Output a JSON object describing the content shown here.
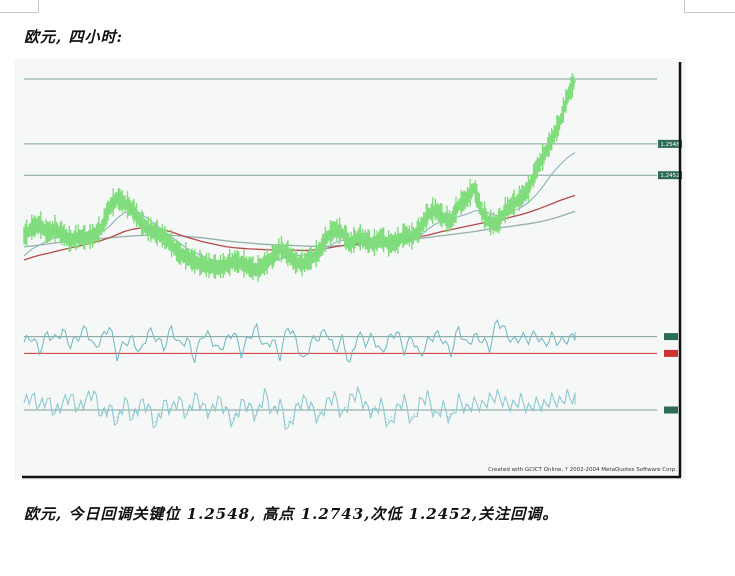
{
  "page": {
    "heading": "欧元, 四小时:",
    "comment": "欧元, 今日回调关键位 1.2548, 高点 1.2743,次低 1.2452,关注回调。"
  },
  "chart_data": {
    "type": "line",
    "timeframe": "4H",
    "credit": "Created with GCICT Online, ? 2002-2004 MetaQuotes Software Corp.",
    "colors": {
      "price": "#7fdc7a",
      "ma_fast": "#8ab4bc",
      "ma_mid": "#b44a4a",
      "ma_slow": "#93b0a8",
      "level_line": "#7ea39b",
      "level_tag": "#2f6b5a",
      "osc1": "#6cb8c0",
      "osc2": "#8ac8d0",
      "zero_line": "#cc3333",
      "frame": "#111111"
    },
    "price_ylim": [
      1.21,
      1.275
    ],
    "price_levels": [
      {
        "value": 1.2548,
        "label": "1.2548"
      },
      {
        "value": 1.2452,
        "label": "1.2452"
      }
    ],
    "price_series": {
      "name": "",
      "values": [
        1.2265,
        1.229,
        1.23,
        1.2275,
        1.2285,
        1.227,
        1.225,
        1.2262,
        1.2258,
        1.2265,
        1.229,
        1.2352,
        1.238,
        1.2365,
        1.2345,
        1.231,
        1.2285,
        1.2275,
        1.2262,
        1.224,
        1.221,
        1.22,
        1.2185,
        1.2178,
        1.2172,
        1.2168,
        1.2175,
        1.2188,
        1.2182,
        1.217,
        1.216,
        1.2178,
        1.22,
        1.2225,
        1.221,
        1.2185,
        1.218,
        1.2196,
        1.2215,
        1.226,
        1.2285,
        1.2275,
        1.224,
        1.2262,
        1.2252,
        1.224,
        1.2258,
        1.224,
        1.2246,
        1.2268,
        1.2262,
        1.2285,
        1.233,
        1.2345,
        1.2322,
        1.2308,
        1.236,
        1.2378,
        1.2412,
        1.2338,
        1.2305,
        1.2302,
        1.2342,
        1.2362,
        1.2382,
        1.2408,
        1.2468,
        1.2512,
        1.256,
        1.261,
        1.269,
        1.2743
      ]
    },
    "ma_fast": [
      1.2205,
      1.2225,
      1.2238,
      1.225,
      1.2262,
      1.2268,
      1.227,
      1.2268,
      1.227,
      1.2272,
      1.2278,
      1.2295,
      1.232,
      1.2338,
      1.2342,
      1.2335,
      1.2318,
      1.23,
      1.2282,
      1.2262,
      1.2245,
      1.2228,
      1.2215,
      1.2205,
      1.2195,
      1.2188,
      1.2183,
      1.2181,
      1.2182,
      1.2182,
      1.218,
      1.2182,
      1.2188,
      1.2196,
      1.2202,
      1.2205,
      1.2208,
      1.221,
      1.2215,
      1.2228,
      1.2245,
      1.2252,
      1.225,
      1.2248,
      1.2246,
      1.2245,
      1.2245,
      1.2243,
      1.2244,
      1.225,
      1.2256,
      1.2265,
      1.2285,
      1.2302,
      1.2312,
      1.2318,
      1.2325,
      1.2332,
      1.2342,
      1.2345,
      1.2335,
      1.2328,
      1.2332,
      1.2342,
      1.2352,
      1.2368,
      1.2392,
      1.2422,
      1.2455,
      1.2482,
      1.2505,
      1.2522
    ],
    "ma_mid": [
      1.2192,
      1.22,
      1.2207,
      1.2212,
      1.2218,
      1.2224,
      1.2229,
      1.2234,
      1.224,
      1.2246,
      1.2252,
      1.226,
      1.227,
      1.228,
      1.2286,
      1.229,
      1.229,
      1.2288,
      1.2284,
      1.2278,
      1.227,
      1.2262,
      1.2255,
      1.2248,
      1.2243,
      1.2238,
      1.2233,
      1.223,
      1.2228,
      1.2226,
      1.2225,
      1.2224,
      1.2223,
      1.2223,
      1.2223,
      1.2222,
      1.2221,
      1.2222,
      1.2224,
      1.2228,
      1.2232,
      1.2236,
      1.2239,
      1.2241,
      1.2243,
      1.2245,
      1.2248,
      1.225,
      1.2252,
      1.2255,
      1.2258,
      1.2263,
      1.2268,
      1.2274,
      1.228,
      1.2285,
      1.229,
      1.2295,
      1.23,
      1.2305,
      1.231,
      1.2314,
      1.2319,
      1.2325,
      1.2331,
      1.2338,
      1.2346,
      1.2355,
      1.2364,
      1.2374,
      1.2382,
      1.239
    ],
    "ma_slow": [
      1.2232,
      1.2235,
      1.2238,
      1.2241,
      1.2244,
      1.2247,
      1.225,
      1.2252,
      1.2254,
      1.2256,
      1.2258,
      1.226,
      1.2262,
      1.2264,
      1.2266,
      1.2267,
      1.2268,
      1.2268,
      1.2268,
      1.2267,
      1.2266,
      1.2264,
      1.2262,
      1.226,
      1.2257,
      1.2254,
      1.2251,
      1.2248,
      1.2246,
      1.2244,
      1.2242,
      1.224,
      1.2239,
      1.2238,
      1.2237,
      1.2236,
      1.2235,
      1.2234,
      1.2234,
      1.2234,
      1.2235,
      1.2236,
      1.2237,
      1.2238,
      1.224,
      1.2242,
      1.2244,
      1.2246,
      1.2249,
      1.2252,
      1.2255,
      1.2258,
      1.2261,
      1.2264,
      1.2267,
      1.227,
      1.2273,
      1.2276,
      1.2279,
      1.2283,
      1.2287,
      1.229,
      1.2293,
      1.2296,
      1.23,
      1.2303,
      1.2307,
      1.2312,
      1.2318,
      1.2325,
      1.2333,
      1.2341
    ],
    "osc1": {
      "ylim": [
        -1,
        1
      ],
      "level": 0.3,
      "zero": -0.3,
      "values": [
        0.1,
        0.3,
        -0.2,
        0.4,
        0.2,
        0.5,
        0.0,
        0.3,
        0.6,
        -0.1,
        0.2,
        0.7,
        -0.4,
        0.1,
        0.2,
        -0.3,
        0.5,
        0.3,
        -0.1,
        0.6,
        0.0,
        0.2,
        -0.5,
        0.4,
        0.3,
        -0.2,
        0.1,
        0.5,
        -0.3,
        0.3,
        0.6,
        -0.1,
        0.2,
        -0.4,
        0.7,
        0.2,
        -0.6,
        0.1,
        0.3,
        0.5,
        -0.2,
        0.2,
        -0.7,
        0.4,
        0.1,
        0.3,
        -0.3,
        0.2,
        0.5,
        -0.2,
        0.3,
        -0.4,
        0.1,
        0.4,
        0.2,
        -0.3,
        0.6,
        0.0,
        0.3,
        0.2,
        -0.1,
        0.9,
        0.5,
        0.1,
        0.3,
        0.2,
        0.4,
        0.0,
        0.3,
        0.1,
        0.2,
        0.3
      ]
    },
    "osc2": {
      "ylim": [
        -1,
        1
      ],
      "level": 0.0,
      "values": [
        0.2,
        0.4,
        0.1,
        0.3,
        -0.1,
        0.2,
        0.4,
        0.0,
        0.3,
        0.5,
        -0.2,
        0.1,
        -0.4,
        0.3,
        -0.3,
        0.2,
        0.1,
        -0.5,
        0.2,
        0.0,
        0.3,
        -0.2,
        0.4,
        0.1,
        -0.1,
        0.3,
        0.0,
        -0.4,
        0.2,
        0.1,
        -0.2,
        0.5,
        -0.1,
        0.2,
        -0.6,
        0.0,
        0.3,
        0.1,
        -0.3,
        0.2,
        0.4,
        -0.2,
        0.3,
        0.5,
        0.1,
        -0.1,
        0.2,
        -0.5,
        0.0,
        0.3,
        -0.4,
        0.2,
        0.4,
        -0.2,
        0.1,
        -0.3,
        0.3,
        0.0,
        0.2,
        0.1,
        0.3,
        0.4,
        0.2,
        0.1,
        0.3,
        0.0,
        0.2,
        0.1,
        0.3,
        0.2,
        0.4,
        0.3
      ]
    }
  }
}
